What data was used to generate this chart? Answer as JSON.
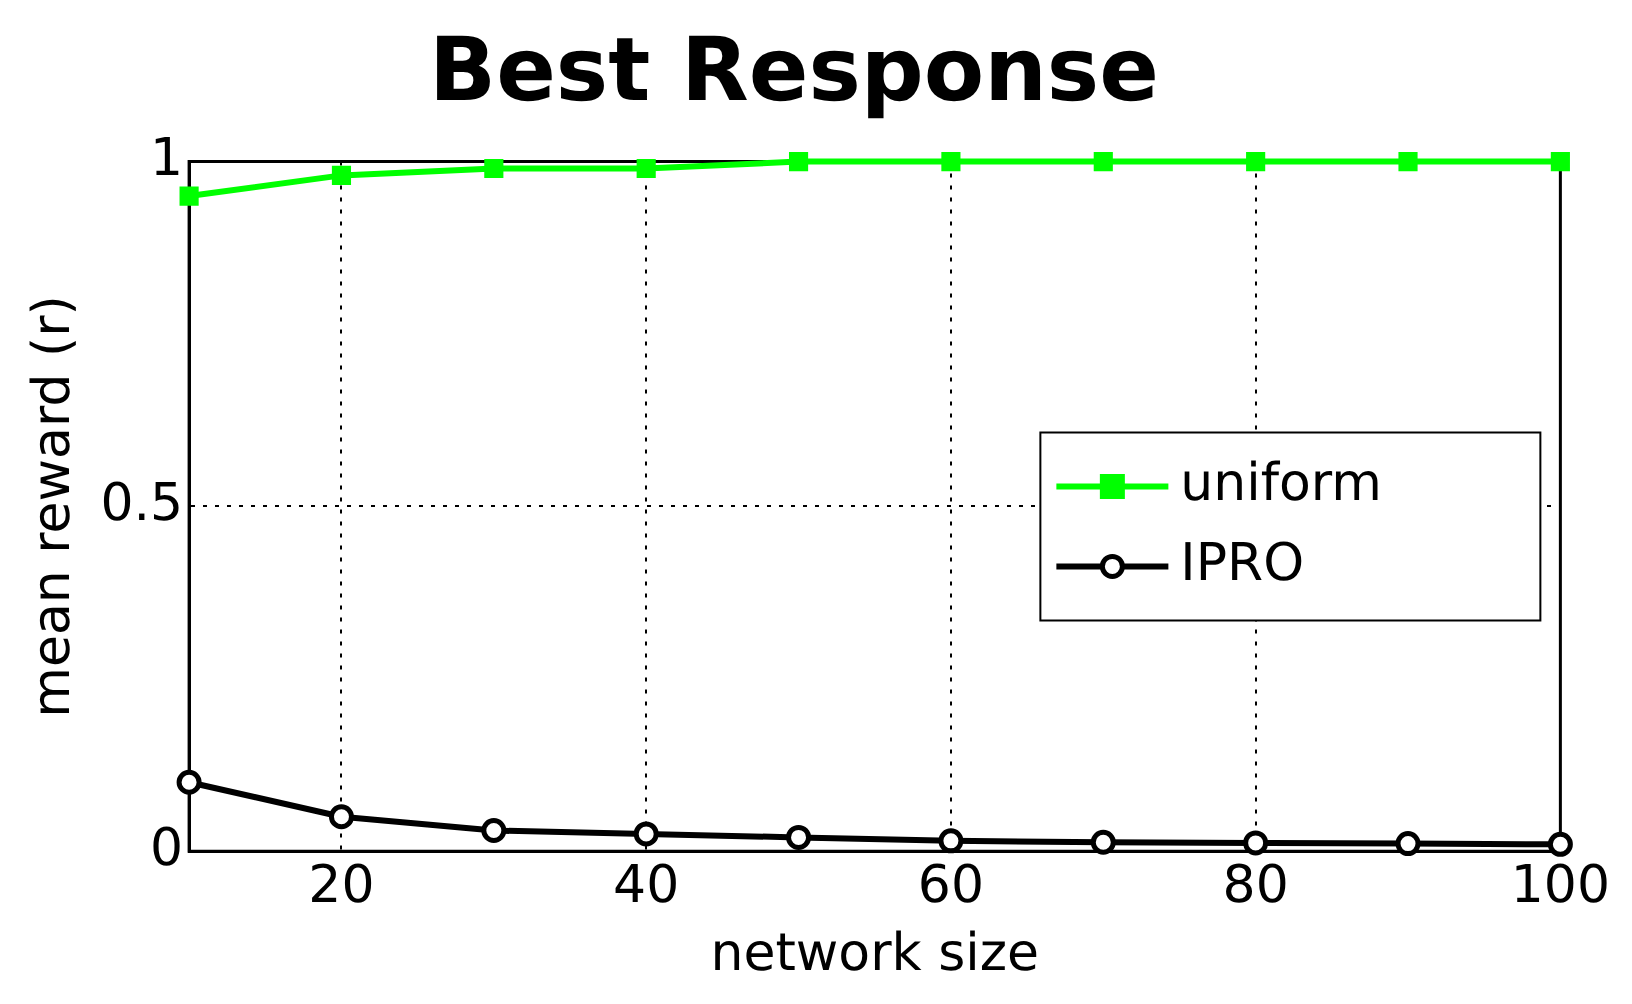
{
  "chart_data": {
    "type": "line",
    "title": "Best Response",
    "xlabel": "network size",
    "ylabel": "mean reward (r)",
    "x": [
      10,
      20,
      30,
      40,
      50,
      60,
      70,
      80,
      90,
      100
    ],
    "series": [
      {
        "name": "uniform",
        "color": "#00ff00",
        "marker": "square",
        "values": [
          0.95,
          0.98,
          0.99,
          0.99,
          1.0,
          1.0,
          1.0,
          1.0,
          1.0,
          1.0
        ]
      },
      {
        "name": "IPRO",
        "color": "#000000",
        "marker": "circle",
        "values": [
          0.1,
          0.05,
          0.03,
          0.025,
          0.02,
          0.015,
          0.013,
          0.012,
          0.011,
          0.01
        ]
      }
    ],
    "xlim": [
      10,
      100
    ],
    "xticks": [
      20,
      40,
      60,
      80,
      100
    ],
    "ylim": [
      0,
      1
    ],
    "yticks": [
      0,
      0.5,
      1
    ],
    "grid": true,
    "line_style": "solid",
    "legend": "right"
  }
}
